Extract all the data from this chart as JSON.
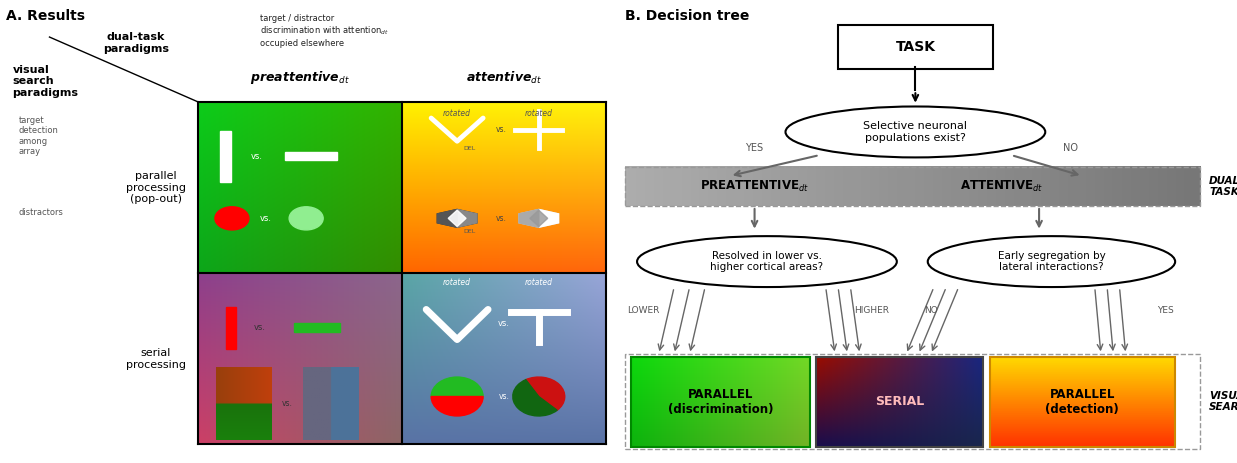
{
  "fig_width": 12.37,
  "fig_height": 4.63,
  "bg_color": "#ffffff",
  "left_panel": {
    "title": "A. Results",
    "diagonal_top_label": "dual-task\nparadigms",
    "diagonal_bottom_label": "visual\nsearch\nparadigms",
    "small_left_top": "target\ndetection\namong\narray",
    "small_left_bot": "distractors",
    "small_right": "target / distractor\ndiscrimination with attention$_{dt}$\noccupied elsewhere",
    "col_label_left": "preattentive$_{dt}$",
    "col_label_right": "attentive$_{dt}$",
    "row_label_top": "parallel\nprocessing\n(pop-out)",
    "row_label_bot": "serial\nprocessing"
  },
  "right_panel": {
    "title": "B. Decision tree",
    "task_label": "TASK",
    "q1_label": "Selective neuronal\npopulations exist?",
    "yes1": "YES",
    "no1": "NO",
    "preattentive": "PREATTENTIVE$_{dt}$",
    "attentive": "ATTENTIVE$_{dt}$",
    "dual_task": "DUAL\nTASK",
    "q2_left": "Resolved in lower vs.\nhigher cortical areas?",
    "q2_right": "Early segregation by\nlateral interactions?",
    "lower": "LOWER",
    "higher": "HIGHER",
    "no2": "NO",
    "yes2": "YES",
    "box1": "PARALLEL\n(discrimination)",
    "box2": "SERIAL",
    "box3": "PARALLEL\n(detection)",
    "visual_search": "VISUAL\nSEARCH"
  }
}
